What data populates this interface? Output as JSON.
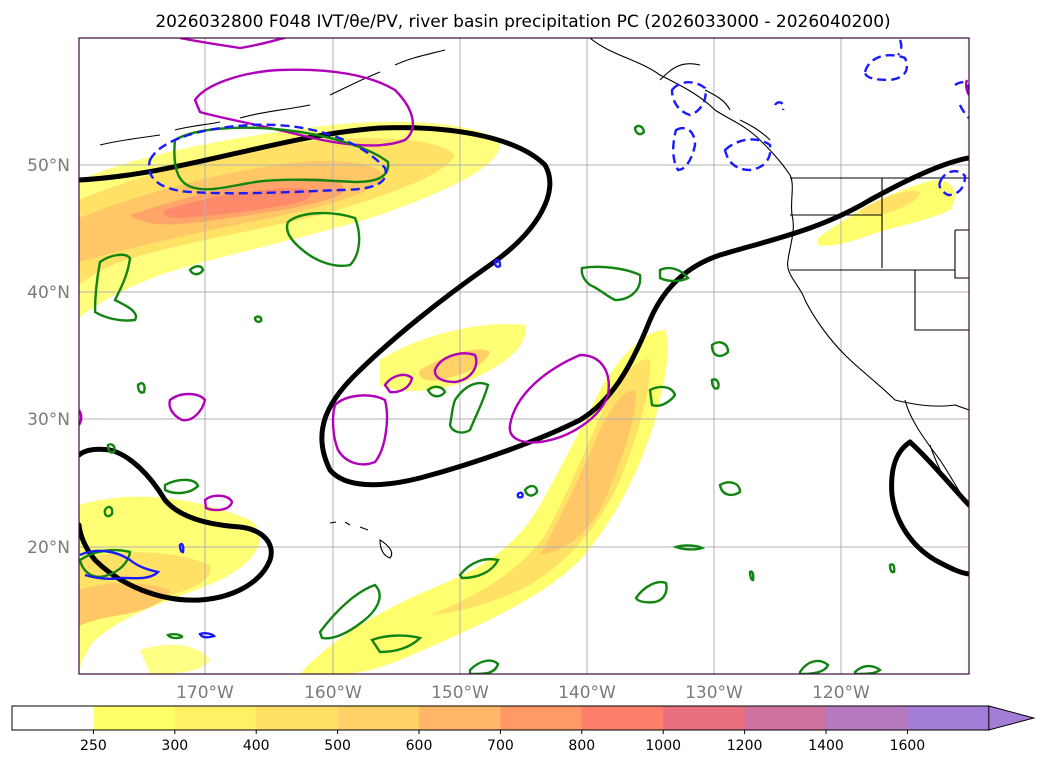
{
  "title": "2026032800 F048 IVT/θe/PV, river basin precipitation PC (2026033000 - 2026040200)",
  "map": {
    "lat_labels": [
      "50°N",
      "40°N",
      "30°N",
      "20°N"
    ],
    "lon_labels": [
      "170°W",
      "160°W",
      "150°W",
      "140°W",
      "130°W",
      "120°W"
    ],
    "extent": {
      "lon_min": -180,
      "lon_max": -110,
      "lat_min": 10,
      "lat_max": 60
    }
  },
  "colorbar": {
    "ticks": [
      "250",
      "300",
      "400",
      "500",
      "600",
      "700",
      "800",
      "1000",
      "1200",
      "1400",
      "1600"
    ],
    "colors": [
      "#ffffff",
      "#ffff66",
      "#fff066",
      "#ffe166",
      "#ffd166",
      "#ffb666",
      "#ff9a66",
      "#ff7f6b",
      "#e8707e",
      "#cf72a0",
      "#b67bbf",
      "#a47ed6"
    ]
  },
  "colors": {
    "pv": "#b000b8",
    "theta_e": "#128412",
    "negative": "#1a1aff",
    "jet": "#000000"
  }
}
